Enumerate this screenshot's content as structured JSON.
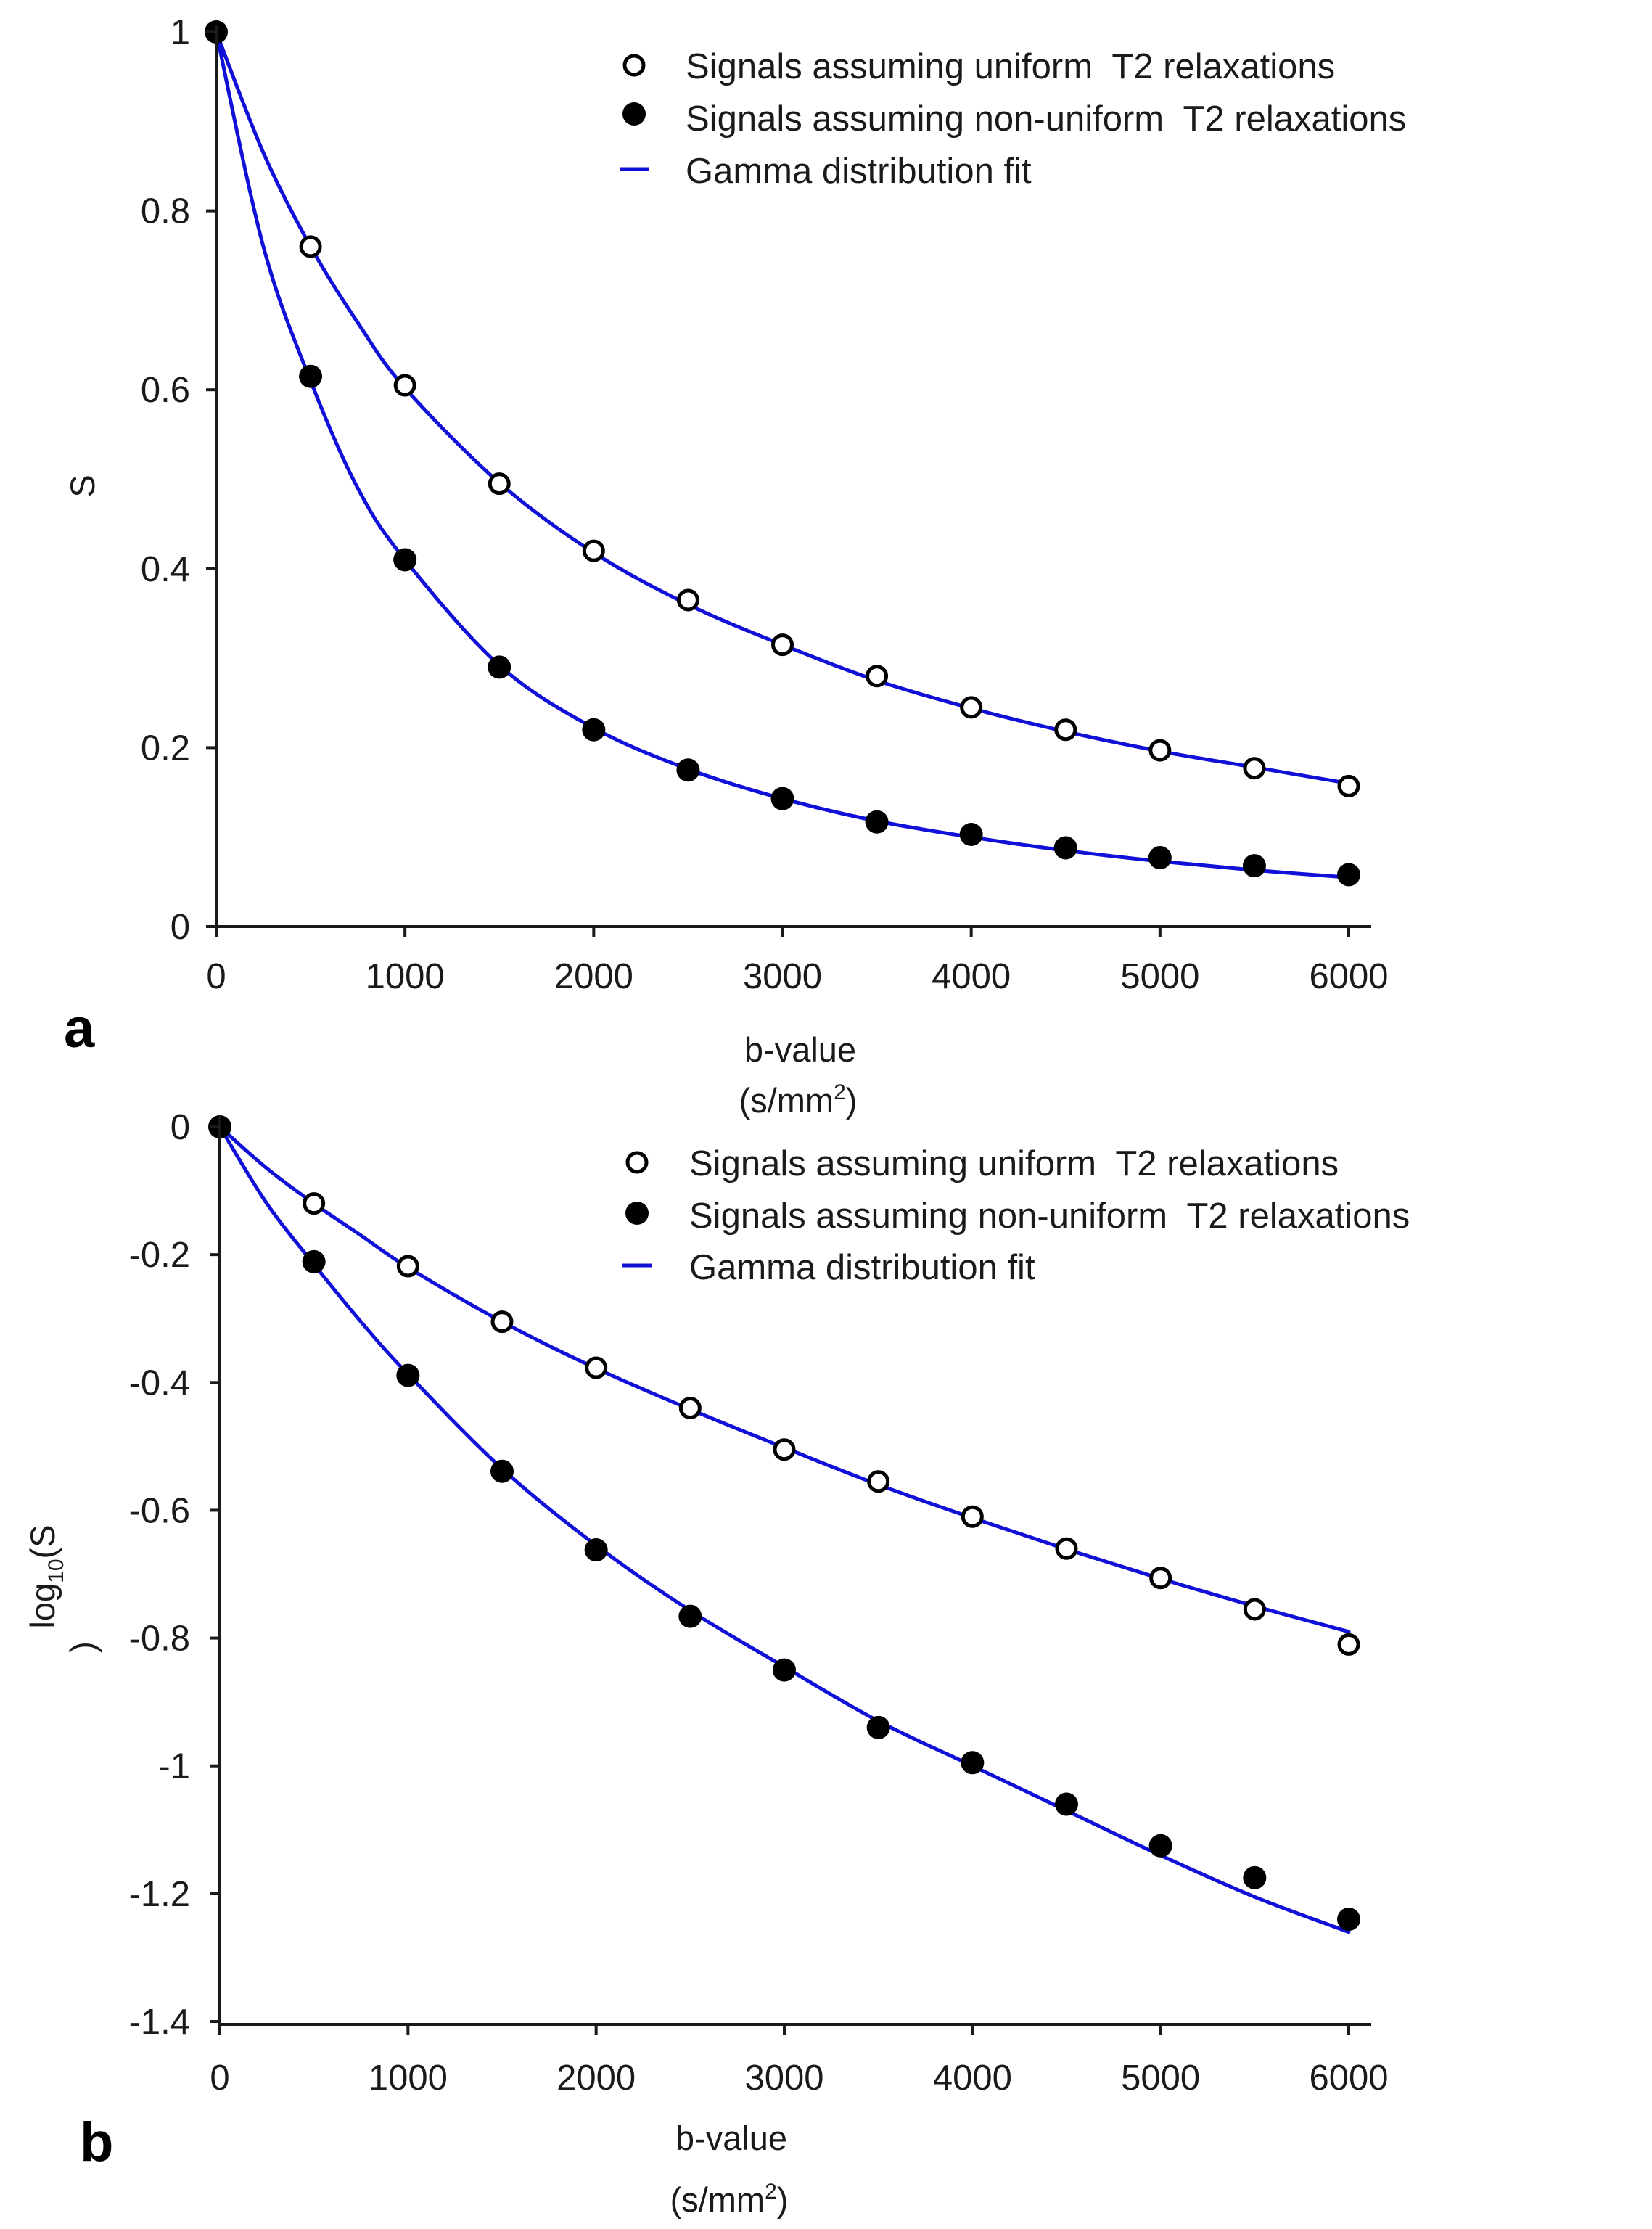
{
  "colors": {
    "fit": "#1010d8",
    "marker": "#000000",
    "axis": "#1a1a1a"
  },
  "chart_data": [
    {
      "panel_label": "a",
      "type": "scatter",
      "xlabel": "b-value",
      "xunit_base": "(s/mm",
      "xunit_sup": "2",
      "xunit_close": ")",
      "ylabel": "S",
      "xlim": [
        0,
        6100
      ],
      "ylim": [
        0,
        1.02
      ],
      "xticks": [
        0,
        1000,
        2000,
        3000,
        4000,
        5000,
        6000
      ],
      "xtick_labels": [
        "0",
        "1000",
        "2000",
        "3000",
        "4000",
        "5000",
        "6000"
      ],
      "yticks": [
        0,
        0.2,
        0.4,
        0.6,
        0.8,
        1
      ],
      "ytick_labels": [
        "0",
        "0.2",
        "0.4",
        "0.6",
        "0.8",
        "1"
      ],
      "x": [
        0,
        500,
        1000,
        1500,
        2000,
        2500,
        3000,
        3500,
        4000,
        4500,
        5000,
        5500,
        6000
      ],
      "series": [
        {
          "name": "Signals assuming uniform  T2 relaxations",
          "marker": "open-circle",
          "values": [
            1.0,
            0.76,
            0.605,
            0.495,
            0.42,
            0.365,
            0.315,
            0.28,
            0.245,
            0.22,
            0.197,
            0.177,
            0.157
          ]
        },
        {
          "name": "Signals assuming non-uniform  T2 relaxations",
          "marker": "filled-circle",
          "values": [
            1.0,
            0.615,
            0.41,
            0.29,
            0.22,
            0.175,
            0.143,
            0.117,
            0.103,
            0.088,
            0.077,
            0.068,
            0.058
          ]
        }
      ],
      "fits": [
        {
          "name": "Gamma distribution fit",
          "x": [
            0,
            250,
            500,
            750,
            1000,
            1500,
            2000,
            2500,
            3000,
            3500,
            4000,
            4500,
            5000,
            5500,
            6000
          ],
          "values": [
            1.0,
            0.865,
            0.76,
            0.675,
            0.602,
            0.496,
            0.418,
            0.36,
            0.315,
            0.275,
            0.244,
            0.218,
            0.196,
            0.178,
            0.16
          ]
        },
        {
          "name": "Gamma distribution fit",
          "x": [
            0,
            250,
            500,
            750,
            1000,
            1500,
            2000,
            2500,
            3000,
            3500,
            4000,
            4500,
            5000,
            5500,
            6000
          ],
          "values": [
            1.0,
            0.76,
            0.61,
            0.49,
            0.41,
            0.292,
            0.222,
            0.176,
            0.143,
            0.118,
            0.1,
            0.085,
            0.073,
            0.063,
            0.055
          ]
        }
      ],
      "legend": {
        "position": "top-right",
        "entries": [
          "Signals assuming uniform  T2 relaxations",
          "Signals assuming non-uniform  T2 relaxations",
          "Gamma distribution fit"
        ]
      }
    },
    {
      "panel_label": "b",
      "type": "scatter",
      "xlabel": "b-value",
      "xunit_base": "(s/mm",
      "xunit_sup": "2",
      "xunit_close": ")",
      "ylabel_base": "log",
      "ylabel_sub": "10",
      "ylabel_rest": "(S",
      "ylabel_line2": ")",
      "xlim": [
        0,
        6150
      ],
      "ylim": [
        -1.4,
        0.02
      ],
      "xticks": [
        0,
        1000,
        2000,
        3000,
        4000,
        5000,
        6000
      ],
      "xtick_labels": [
        "0",
        "1000",
        "2000",
        "3000",
        "4000",
        "5000",
        "6000"
      ],
      "yticks": [
        0,
        -0.2,
        -0.4,
        -0.6,
        -0.8,
        -1,
        -1.2,
        -1.4
      ],
      "ytick_labels": [
        "0",
        "-0.2",
        "-0.4",
        "-0.6",
        "-0.8",
        "-1",
        "-1.2",
        "-1.4"
      ],
      "x": [
        0,
        500,
        1000,
        1500,
        2000,
        2500,
        3000,
        3500,
        4000,
        4500,
        5000,
        5500,
        6000
      ],
      "series": [
        {
          "name": "Signals assuming uniform  T2 relaxations",
          "marker": "open-circle",
          "values": [
            0.0,
            -0.12,
            -0.218,
            -0.305,
            -0.377,
            -0.44,
            -0.505,
            -0.555,
            -0.61,
            -0.66,
            -0.706,
            -0.755,
            -0.81
          ]
        },
        {
          "name": "Signals assuming non-uniform  T2 relaxations",
          "marker": "filled-circle",
          "values": [
            0.0,
            -0.211,
            -0.389,
            -0.539,
            -0.662,
            -0.766,
            -0.85,
            -0.94,
            -0.995,
            -1.06,
            -1.125,
            -1.175,
            -1.24
          ]
        }
      ],
      "fits": [
        {
          "name": "Gamma distribution fit",
          "x": [
            0,
            250,
            500,
            750,
            1000,
            1500,
            2000,
            2500,
            3000,
            3500,
            4000,
            4500,
            5000,
            5500,
            6000
          ],
          "values": [
            0.0,
            -0.065,
            -0.12,
            -0.17,
            -0.22,
            -0.305,
            -0.378,
            -0.442,
            -0.502,
            -0.56,
            -0.612,
            -0.661,
            -0.707,
            -0.75,
            -0.79
          ]
        },
        {
          "name": "Gamma distribution fit",
          "x": [
            0,
            250,
            500,
            750,
            1000,
            1500,
            2000,
            2500,
            3000,
            3500,
            4000,
            4500,
            5000,
            5500,
            6000
          ],
          "values": [
            0.0,
            -0.12,
            -0.215,
            -0.305,
            -0.387,
            -0.535,
            -0.655,
            -0.757,
            -0.845,
            -0.93,
            -1.0,
            -1.07,
            -1.14,
            -1.205,
            -1.26
          ]
        }
      ],
      "legend": {
        "position": "top-right",
        "entries": [
          "Signals assuming uniform  T2 relaxations",
          "Signals assuming non-uniform  T2 relaxations",
          "Gamma distribution fit"
        ]
      }
    }
  ]
}
